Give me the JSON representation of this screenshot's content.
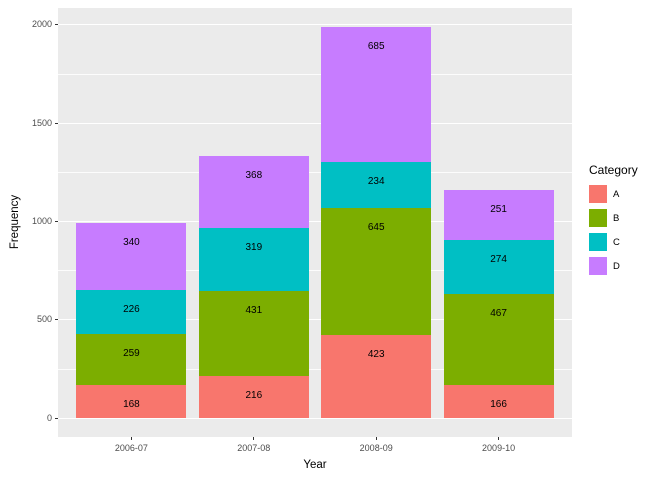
{
  "chart_data": {
    "type": "bar",
    "stacked": true,
    "title": "",
    "xlabel": "Year",
    "ylabel": "Frequency",
    "categories": [
      "2006-07",
      "2007-08",
      "2008-09",
      "2009-10"
    ],
    "series": [
      {
        "name": "A",
        "color": "#F8766D",
        "values": [
          168,
          216,
          423,
          166
        ]
      },
      {
        "name": "B",
        "color": "#7CAE00",
        "values": [
          259,
          431,
          645,
          467
        ]
      },
      {
        "name": "C",
        "color": "#00BFC4",
        "values": [
          226,
          319,
          234,
          274
        ]
      },
      {
        "name": "D",
        "color": "#C77CFF",
        "values": [
          340,
          368,
          685,
          251
        ]
      }
    ],
    "stack_order_bottom_to_top": [
      "A",
      "B",
      "C",
      "D"
    ],
    "bar_segment_labels_visible": true,
    "y_ticks": [
      0,
      500,
      1000,
      1500,
      2000
    ],
    "y_minor_ticks": [
      250,
      750,
      1250,
      1750
    ],
    "ylim": [
      -96,
      2086
    ],
    "bar_totals": [
      993,
      1334,
      1987,
      1158
    ],
    "legend": {
      "title": "Category",
      "position": "right",
      "entries": [
        "A",
        "B",
        "C",
        "D"
      ]
    },
    "grid": true,
    "style": {
      "panel_bg": "#EBEBEB",
      "grid_color": "#FFFFFF",
      "tick_text_color": "#4D4D4D",
      "axis_title_color": "#000000",
      "bar_label_color": "#000000",
      "figure_bg": "#FFFFFF"
    }
  }
}
